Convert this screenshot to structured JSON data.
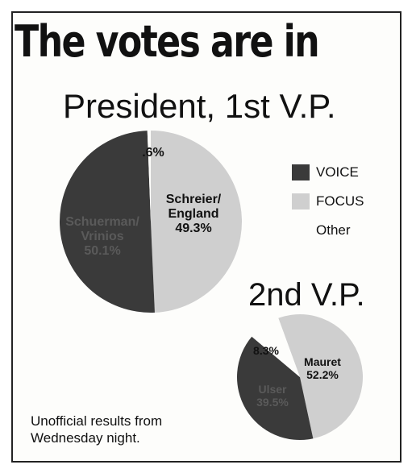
{
  "headline": "The votes are in",
  "note": "Unofficial results from Wednesday night.",
  "legend": [
    {
      "label": "VOICE",
      "color": "#3a3a3a"
    },
    {
      "label": "FOCUS",
      "color": "#cfcfcf"
    },
    {
      "label": "Other",
      "color": "#fdfdfb"
    }
  ],
  "chart_data": [
    {
      "type": "pie",
      "title": "President, 1st V.P.",
      "slices": [
        {
          "party": "FOCUS",
          "label": "Schreier/ England",
          "lines": [
            "Schreier/",
            "England"
          ],
          "value": 49.3,
          "value_label": "49.3%",
          "color": "#cfcfcf"
        },
        {
          "party": "VOICE",
          "label": "Schuerman/ Vrinios",
          "lines": [
            "Schuerman/",
            "Vrinios"
          ],
          "value": 50.1,
          "value_label": "50.1%",
          "color": "#3a3a3a"
        },
        {
          "party": "Other",
          "label": "",
          "lines": [],
          "value": 0.6,
          "value_label": ".6%",
          "color": "#fdfdfb"
        }
      ]
    },
    {
      "type": "pie",
      "title": "2nd V.P.",
      "slices": [
        {
          "party": "FOCUS",
          "label": "Mauret",
          "lines": [
            "Mauret"
          ],
          "value": 52.2,
          "value_label": "52.2%",
          "color": "#cfcfcf"
        },
        {
          "party": "VOICE",
          "label": "Ulser",
          "lines": [
            "Ulser"
          ],
          "value": 39.5,
          "value_label": "39.5%",
          "color": "#3a3a3a"
        },
        {
          "party": "Other",
          "label": "",
          "lines": [],
          "value": 8.3,
          "value_label": "8.3%",
          "color": "#fdfdfb"
        }
      ]
    }
  ]
}
